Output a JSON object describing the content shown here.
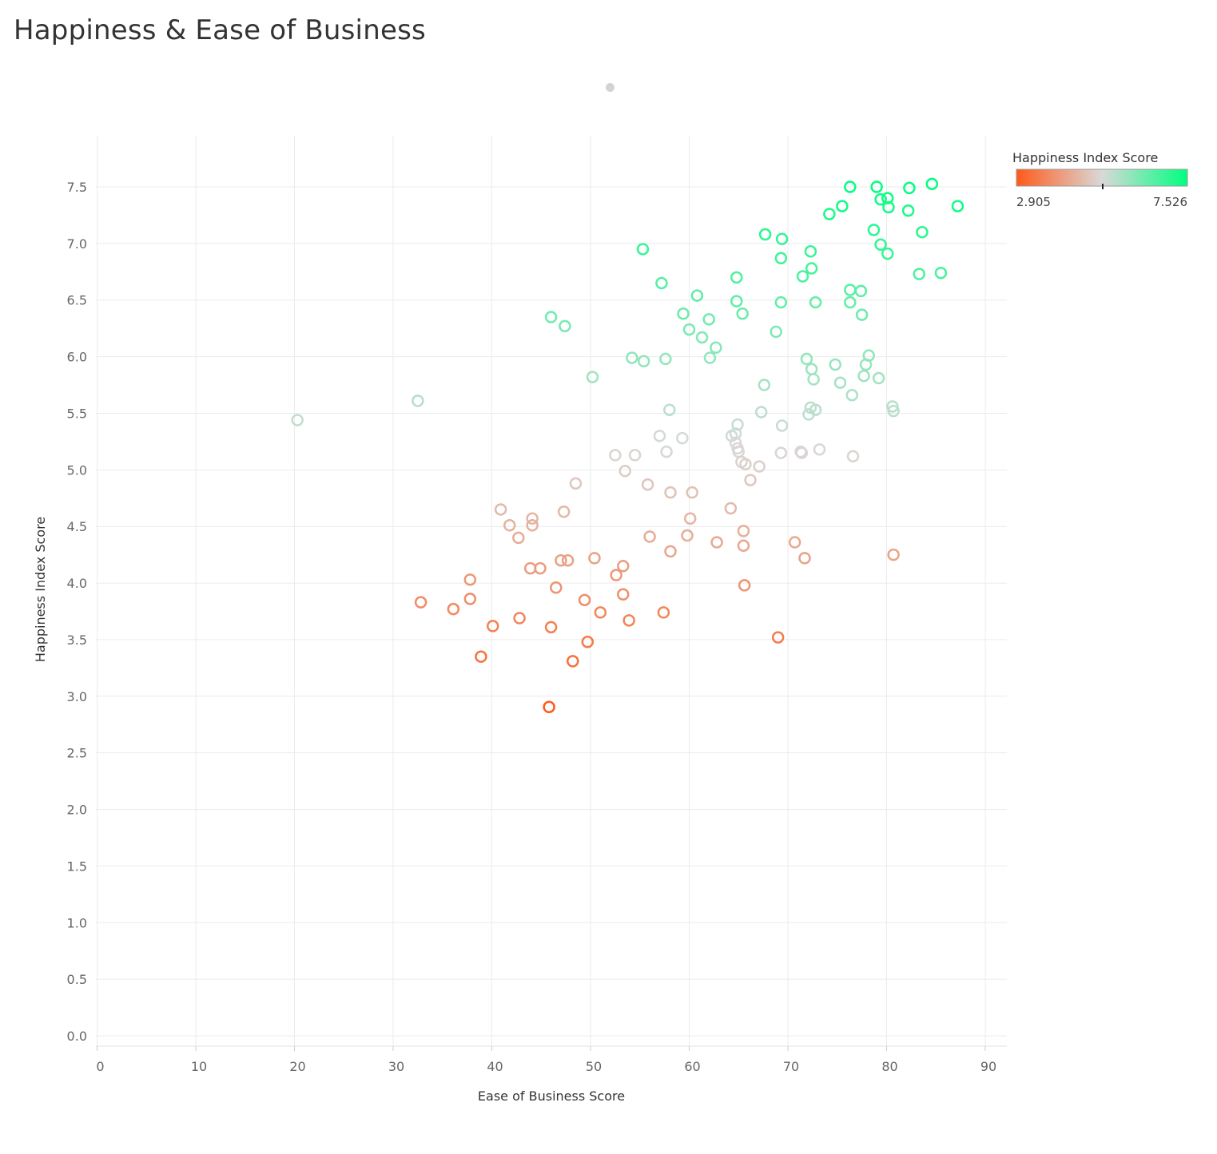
{
  "title": "Happiness & Ease of Business",
  "chart_data": {
    "type": "scatter",
    "title": "Happiness & Ease of Business",
    "xlabel": "Ease of Business Score",
    "ylabel": "Happiness Index Score",
    "xlim": [
      0,
      92
    ],
    "ylim": [
      0,
      7.9
    ],
    "xticks": [
      "0",
      "10",
      "20",
      "30",
      "40",
      "50",
      "60",
      "70",
      "80",
      "90"
    ],
    "yticks": [
      "0.0",
      "0.5",
      "1.0",
      "1.5",
      "2.0",
      "2.5",
      "3.0",
      "3.5",
      "4.0",
      "4.5",
      "5.0",
      "5.5",
      "6.0",
      "6.5",
      "7.0",
      "7.5"
    ],
    "grid": true,
    "legend": {
      "title": "Happiness Index Score",
      "min_label": "2.905",
      "max_label": "7.526",
      "min": 2.905,
      "max": 7.526,
      "colors": [
        "#ff5a1a",
        "#d9d9d9",
        "#00ff80"
      ],
      "placement": "top-right"
    },
    "points": [
      {
        "x": 20.3,
        "y": 5.44
      },
      {
        "x": 32.5,
        "y": 5.61
      },
      {
        "x": 32.8,
        "y": 3.83
      },
      {
        "x": 36.1,
        "y": 3.77
      },
      {
        "x": 37.8,
        "y": 4.03
      },
      {
        "x": 37.8,
        "y": 3.86
      },
      {
        "x": 38.9,
        "y": 3.35
      },
      {
        "x": 40.1,
        "y": 3.62
      },
      {
        "x": 40.9,
        "y": 4.65
      },
      {
        "x": 41.8,
        "y": 4.51
      },
      {
        "x": 42.7,
        "y": 4.4
      },
      {
        "x": 42.8,
        "y": 3.69
      },
      {
        "x": 43.9,
        "y": 4.13
      },
      {
        "x": 44.1,
        "y": 4.57
      },
      {
        "x": 44.1,
        "y": 4.51
      },
      {
        "x": 44.9,
        "y": 4.13
      },
      {
        "x": 45.8,
        "y": 2.905
      },
      {
        "x": 46.0,
        "y": 3.61
      },
      {
        "x": 46.0,
        "y": 6.35
      },
      {
        "x": 46.5,
        "y": 3.96
      },
      {
        "x": 47.0,
        "y": 4.2
      },
      {
        "x": 47.3,
        "y": 4.63
      },
      {
        "x": 47.4,
        "y": 6.27
      },
      {
        "x": 47.7,
        "y": 4.2
      },
      {
        "x": 48.2,
        "y": 3.31
      },
      {
        "x": 48.5,
        "y": 4.88
      },
      {
        "x": 49.4,
        "y": 3.85
      },
      {
        "x": 49.7,
        "y": 3.48
      },
      {
        "x": 50.2,
        "y": 5.82
      },
      {
        "x": 50.4,
        "y": 4.22
      },
      {
        "x": 51.0,
        "y": 3.74
      },
      {
        "x": 52.5,
        "y": 5.13
      },
      {
        "x": 52.6,
        "y": 4.07
      },
      {
        "x": 53.3,
        "y": 4.15
      },
      {
        "x": 53.3,
        "y": 3.9
      },
      {
        "x": 53.5,
        "y": 4.99
      },
      {
        "x": 53.9,
        "y": 3.67
      },
      {
        "x": 54.2,
        "y": 5.99
      },
      {
        "x": 54.5,
        "y": 5.13
      },
      {
        "x": 55.3,
        "y": 6.95
      },
      {
        "x": 55.4,
        "y": 5.96
      },
      {
        "x": 55.8,
        "y": 4.87
      },
      {
        "x": 56.0,
        "y": 4.41
      },
      {
        "x": 57.0,
        "y": 5.3
      },
      {
        "x": 57.2,
        "y": 6.65
      },
      {
        "x": 57.4,
        "y": 3.74
      },
      {
        "x": 57.6,
        "y": 5.98
      },
      {
        "x": 57.7,
        "y": 5.16
      },
      {
        "x": 58.0,
        "y": 5.53
      },
      {
        "x": 58.1,
        "y": 4.8
      },
      {
        "x": 58.1,
        "y": 4.28
      },
      {
        "x": 59.3,
        "y": 5.28
      },
      {
        "x": 59.4,
        "y": 6.38
      },
      {
        "x": 59.8,
        "y": 4.42
      },
      {
        "x": 60.0,
        "y": 6.24
      },
      {
        "x": 60.1,
        "y": 4.57
      },
      {
        "x": 60.3,
        "y": 4.8
      },
      {
        "x": 60.8,
        "y": 6.54
      },
      {
        "x": 61.3,
        "y": 6.17
      },
      {
        "x": 62.0,
        "y": 6.33
      },
      {
        "x": 62.1,
        "y": 5.99
      },
      {
        "x": 62.7,
        "y": 6.08
      },
      {
        "x": 62.8,
        "y": 4.36
      },
      {
        "x": 64.2,
        "y": 4.66
      },
      {
        "x": 64.3,
        "y": 5.3
      },
      {
        "x": 64.7,
        "y": 5.32
      },
      {
        "x": 64.7,
        "y": 5.24
      },
      {
        "x": 64.8,
        "y": 6.7
      },
      {
        "x": 64.8,
        "y": 6.49
      },
      {
        "x": 64.9,
        "y": 5.4
      },
      {
        "x": 64.9,
        "y": 5.19
      },
      {
        "x": 65.0,
        "y": 5.16
      },
      {
        "x": 65.3,
        "y": 5.07
      },
      {
        "x": 65.4,
        "y": 6.38
      },
      {
        "x": 65.5,
        "y": 4.46
      },
      {
        "x": 65.5,
        "y": 4.33
      },
      {
        "x": 65.6,
        "y": 3.98
      },
      {
        "x": 65.7,
        "y": 5.05
      },
      {
        "x": 66.2,
        "y": 4.91
      },
      {
        "x": 67.1,
        "y": 5.03
      },
      {
        "x": 67.3,
        "y": 5.51
      },
      {
        "x": 67.6,
        "y": 5.75
      },
      {
        "x": 67.7,
        "y": 7.08
      },
      {
        "x": 68.8,
        "y": 6.22
      },
      {
        "x": 69.0,
        "y": 3.52
      },
      {
        "x": 69.3,
        "y": 5.15
      },
      {
        "x": 69.3,
        "y": 6.87
      },
      {
        "x": 69.3,
        "y": 6.48
      },
      {
        "x": 69.4,
        "y": 5.39
      },
      {
        "x": 69.4,
        "y": 7.04
      },
      {
        "x": 70.7,
        "y": 4.36
      },
      {
        "x": 71.3,
        "y": 5.16
      },
      {
        "x": 71.4,
        "y": 5.15
      },
      {
        "x": 71.5,
        "y": 6.71
      },
      {
        "x": 71.7,
        "y": 4.22
      },
      {
        "x": 71.9,
        "y": 5.98
      },
      {
        "x": 72.1,
        "y": 5.49
      },
      {
        "x": 72.3,
        "y": 5.55
      },
      {
        "x": 72.3,
        "y": 6.93
      },
      {
        "x": 72.4,
        "y": 5.89
      },
      {
        "x": 72.4,
        "y": 6.78
      },
      {
        "x": 72.6,
        "y": 5.8
      },
      {
        "x": 72.8,
        "y": 6.48
      },
      {
        "x": 72.8,
        "y": 5.53
      },
      {
        "x": 73.2,
        "y": 5.18
      },
      {
        "x": 74.2,
        "y": 7.26
      },
      {
        "x": 74.8,
        "y": 5.93
      },
      {
        "x": 75.3,
        "y": 5.77
      },
      {
        "x": 75.5,
        "y": 7.33
      },
      {
        "x": 76.3,
        "y": 7.5
      },
      {
        "x": 76.3,
        "y": 6.59
      },
      {
        "x": 76.3,
        "y": 6.48
      },
      {
        "x": 76.5,
        "y": 5.66
      },
      {
        "x": 76.6,
        "y": 5.12
      },
      {
        "x": 77.4,
        "y": 6.58
      },
      {
        "x": 77.5,
        "y": 6.37
      },
      {
        "x": 77.7,
        "y": 5.83
      },
      {
        "x": 77.9,
        "y": 5.93
      },
      {
        "x": 78.2,
        "y": 6.01
      },
      {
        "x": 78.7,
        "y": 7.12
      },
      {
        "x": 79.0,
        "y": 7.5
      },
      {
        "x": 79.2,
        "y": 5.81
      },
      {
        "x": 79.4,
        "y": 6.99
      },
      {
        "x": 79.4,
        "y": 7.39
      },
      {
        "x": 80.1,
        "y": 7.4
      },
      {
        "x": 80.1,
        "y": 6.91
      },
      {
        "x": 80.2,
        "y": 7.32
      },
      {
        "x": 80.6,
        "y": 5.56
      },
      {
        "x": 80.7,
        "y": 5.52
      },
      {
        "x": 80.7,
        "y": 4.25
      },
      {
        "x": 82.2,
        "y": 7.29
      },
      {
        "x": 82.3,
        "y": 7.49
      },
      {
        "x": 83.3,
        "y": 6.73
      },
      {
        "x": 83.6,
        "y": 7.1
      },
      {
        "x": 84.6,
        "y": 7.526
      },
      {
        "x": 85.5,
        "y": 6.74
      },
      {
        "x": 87.2,
        "y": 7.33
      }
    ]
  }
}
